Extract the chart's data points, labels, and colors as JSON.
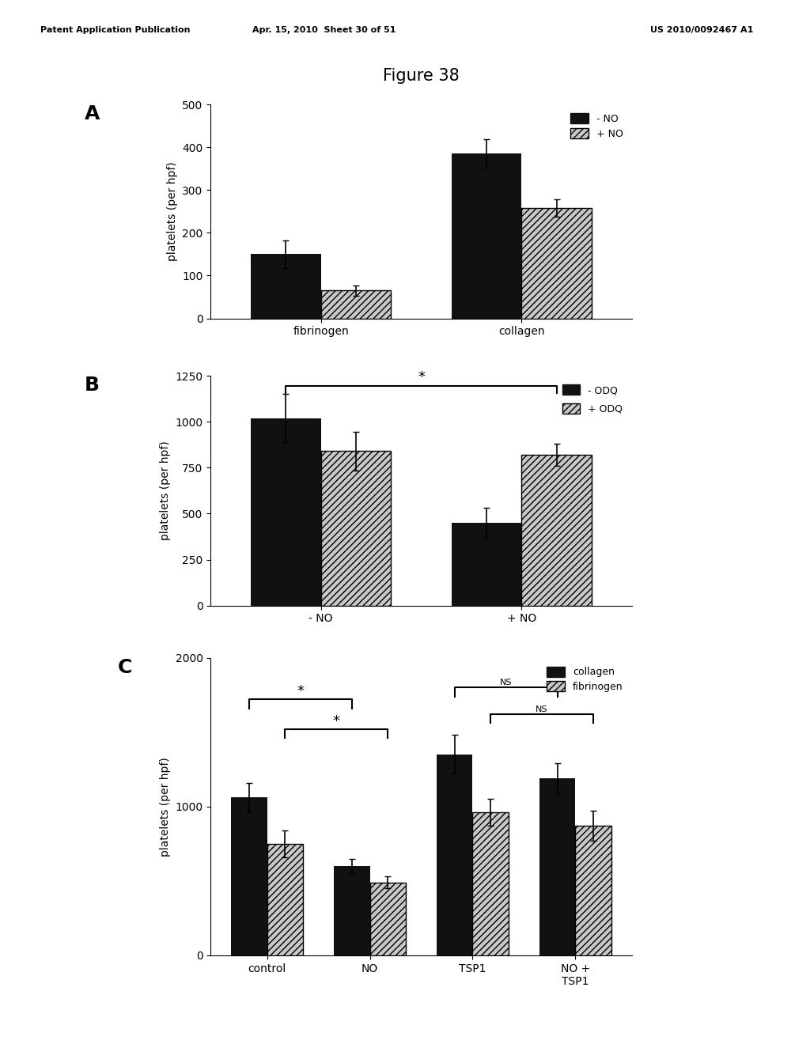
{
  "figure_title": "Figure 38",
  "header_left": "Patent Application Publication",
  "header_mid": "Apr. 15, 2010  Sheet 30 of 51",
  "header_right": "US 2010/0092467 A1",
  "panel_A": {
    "label": "A",
    "categories": [
      "fibrinogen",
      "collagen"
    ],
    "series1_label": "- NO",
    "series2_label": "+ NO",
    "series1_values": [
      150,
      385
    ],
    "series2_values": [
      65,
      258
    ],
    "series1_errors": [
      32,
      33
    ],
    "series2_errors": [
      12,
      20
    ],
    "ylabel": "platelets (per hpf)",
    "ylim": [
      0,
      500
    ],
    "yticks": [
      0,
      100,
      200,
      300,
      400,
      500
    ]
  },
  "panel_B": {
    "label": "B",
    "categories": [
      "- NO",
      "+ NO"
    ],
    "series1_label": "- ODQ",
    "series2_label": "+ ODQ",
    "series1_values": [
      1020,
      450
    ],
    "series2_values": [
      840,
      820
    ],
    "series1_errors": [
      130,
      80
    ],
    "series2_errors": [
      105,
      60
    ],
    "ylabel": "platelets (per hpf)",
    "ylim": [
      0,
      1250
    ],
    "yticks": [
      0,
      250,
      500,
      750,
      1000,
      1250
    ],
    "sig_label": "*"
  },
  "panel_C": {
    "label": "C",
    "categories": [
      "control",
      "NO",
      "TSP1",
      "NO +\nTSP1"
    ],
    "series1_label": "collagen",
    "series2_label": "fibrinogen",
    "series1_values": [
      1060,
      600,
      1350,
      1190
    ],
    "series2_values": [
      750,
      490,
      960,
      870
    ],
    "series1_errors": [
      100,
      50,
      130,
      100
    ],
    "series2_errors": [
      90,
      40,
      90,
      100
    ],
    "ylabel": "platelets (per hpf)",
    "ylim": [
      0,
      2000
    ],
    "yticks": [
      0,
      1000,
      2000
    ]
  },
  "bar_width": 0.35,
  "solid_color": "#111111",
  "hatch_pattern": "////",
  "hatch_facecolor": "#c8c8c8",
  "background_color": "#ffffff",
  "font_size": 10,
  "label_font_size": 16
}
